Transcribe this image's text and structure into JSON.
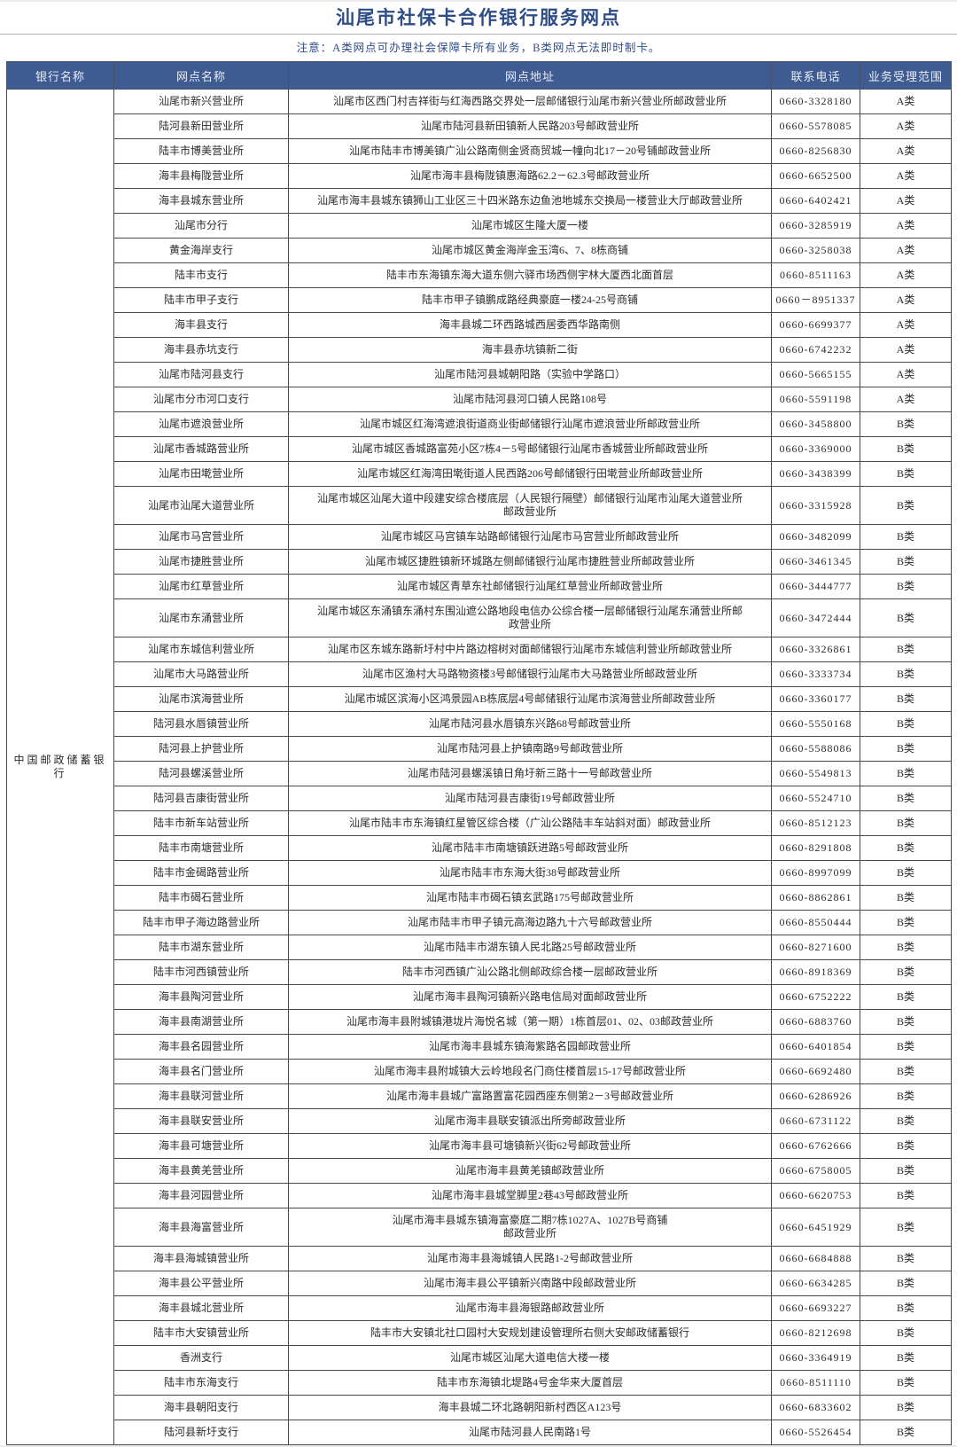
{
  "title": "汕尾市社保卡合作银行服务网点",
  "note": "注意：A类网点可办理社会保障卡所有业务，B类网点无法即时制卡。",
  "colors": {
    "header_bg": "#3f5c92",
    "header_text": "#e8ecf4",
    "title_text": "#2e4c86",
    "border": "#4a4a4a"
  },
  "table": {
    "headers": [
      "银行名称",
      "网点名称",
      "网点地址",
      "联系电话",
      "业务受理范围"
    ],
    "bank": "中国邮政储蓄银行",
    "rows": [
      {
        "name": "汕尾市新兴营业所",
        "address": "汕尾市区西门村吉祥街与红海西路交界处一层邮储银行汕尾市新兴营业所邮政营业所",
        "phone": "0660-3328180",
        "category": "A类"
      },
      {
        "name": "陆河县新田营业所",
        "address": "汕尾市陆河县新田镇新人民路203号邮政营业所",
        "phone": "0660-5578085",
        "category": "A类"
      },
      {
        "name": "陆丰市博美营业所",
        "address": "汕尾市陆丰市博美镇广汕公路南侧金贤商贸城一幢向北17－20号铺邮政营业所",
        "phone": "0660-8256830",
        "category": "A类"
      },
      {
        "name": "海丰县梅陇营业所",
        "address": "汕尾市海丰县梅陇镇惠海路62.2－62.3号邮政营业所",
        "phone": "0660-6652500",
        "category": "A类"
      },
      {
        "name": "海丰县城东营业所",
        "address": "汕尾市海丰县城东镇狮山工业区三十四米路东边鱼池地城东交换局一楼营业大厅邮政营业所",
        "phone": "0660-6402421",
        "category": "A类"
      },
      {
        "name": "汕尾市分行",
        "address": "汕尾市城区生隆大厦一楼",
        "phone": "0660-3285919",
        "category": "A类"
      },
      {
        "name": "黄金海岸支行",
        "address": "汕尾市城区黄金海岸金玉湾6、7、8栋商铺",
        "phone": "0660-3258038",
        "category": "A类"
      },
      {
        "name": "陆丰市支行",
        "address": "陆丰市东海镇东海大道东侧六驿市场西侧宇林大厦西北面首层",
        "phone": "0660-8511163",
        "category": "A类"
      },
      {
        "name": "陆丰市甲子支行",
        "address": "陆丰市甲子镇鹏成路经典豪庭一楼24-25号商铺",
        "phone": "0660－8951337",
        "category": "A类"
      },
      {
        "name": "海丰县支行",
        "address": "海丰县城二环西路城西居委西华路南侧",
        "phone": "0660-6699377",
        "category": "A类"
      },
      {
        "name": "海丰县赤坑支行",
        "address": "海丰县赤坑镇新二街",
        "phone": "0660-6742232",
        "category": "A类"
      },
      {
        "name": "汕尾市陆河县支行",
        "address": "汕尾市陆河县城朝阳路（实验中学路口）",
        "phone": "0660-5665155",
        "category": "A类"
      },
      {
        "name": "汕尾市分市河口支行",
        "address": "汕尾市陆河县河口镇人民路108号",
        "phone": "0660-5591198",
        "category": "A类"
      },
      {
        "name": "汕尾市遮浪营业所",
        "address": "汕尾市城区红海湾遮浪街道商业街邮储银行汕尾市遮浪营业所邮政营业所",
        "phone": "0660-3458800",
        "category": "B类"
      },
      {
        "name": "汕尾市香城路营业所",
        "address": "汕尾市城区香城路富苑小区7栋4－5号邮储银行汕尾市香城营业所邮政营业所",
        "phone": "0660-3369000",
        "category": "B类"
      },
      {
        "name": "汕尾市田墘营业所",
        "address": "汕尾市城区红海湾田墘街道人民西路206号邮储银行田墘营业所邮政营业所",
        "phone": "0660-3438399",
        "category": "B类"
      },
      {
        "name": "汕尾市汕尾大道营业所",
        "address": "汕尾市城区汕尾大道中段建安综合楼底层（人民银行隔壁）邮储银行汕尾市汕尾大道营业所\n邮政营业所",
        "phone": "0660-3315928",
        "category": "B类"
      },
      {
        "name": "汕尾市马宫营业所",
        "address": "汕尾市城区马宫镇车站路邮储银行汕尾市马宫营业所邮政营业所",
        "phone": "0660-3482099",
        "category": "B类"
      },
      {
        "name": "汕尾市捷胜营业所",
        "address": "汕尾市城区捷胜镇新环城路左侧邮储银行汕尾市捷胜营业所邮政营业所",
        "phone": "0660-3461345",
        "category": "B类"
      },
      {
        "name": "汕尾市红草营业所",
        "address": "汕尾市城区青草东社邮储银行汕尾红草营业所邮政营业所",
        "phone": "0660-3444777",
        "category": "B类"
      },
      {
        "name": "汕尾市东涌营业所",
        "address": "汕尾市城区东涌镇东涌村东围汕遮公路地段电信办公综合楼一层邮储银行汕尾东涌营业所邮\n政营业所",
        "phone": "0660-3472444",
        "category": "B类"
      },
      {
        "name": "汕尾市东城信利营业所",
        "address": "汕尾市区东城东路新圩村中片路边榕树对面邮储银行汕尾市东城信利营业所邮政营业所",
        "phone": "0660-3326861",
        "category": "B类"
      },
      {
        "name": "汕尾市大马路营业所",
        "address": "汕尾市区渔村大马路物资楼3号邮储银行汕尾市大马路营业所邮政营业所",
        "phone": "0660-3333734",
        "category": "B类"
      },
      {
        "name": "汕尾市滨海营业所",
        "address": "汕尾市城区滨海小区鸿景园AB栋底层4号邮储银行汕尾市滨海营业所邮政营业所",
        "phone": "0660-3360177",
        "category": "B类"
      },
      {
        "name": "陆河县水唇镇营业所",
        "address": "汕尾市陆河县水唇镇东兴路68号邮政营业所",
        "phone": "0660-5550168",
        "category": "B类"
      },
      {
        "name": "陆河县上护营业所",
        "address": "汕尾市陆河县上护镇南路9号邮政营业所",
        "phone": "0660-5588086",
        "category": "B类"
      },
      {
        "name": "陆河县螺溪营业所",
        "address": "汕尾市陆河县螺溪镇日角圩新三路十一号邮政营业所",
        "phone": "0660-5549813",
        "category": "B类"
      },
      {
        "name": "陆河县吉康街营业所",
        "address": "汕尾市陆河县吉康街19号邮政营业所",
        "phone": "0660-5524710",
        "category": "B类"
      },
      {
        "name": "陆丰市新车站营业所",
        "address": "汕尾市陆丰市东海镇红星管区综合楼（广汕公路陆丰车站斜对面）邮政营业所",
        "phone": "0660-8512123",
        "category": "B类"
      },
      {
        "name": "陆丰市南塘营业所",
        "address": "汕尾市陆丰市南塘镇跃进路5号邮政营业所",
        "phone": "0660-8291808",
        "category": "B类"
      },
      {
        "name": "陆丰市金碣路营业所",
        "address": "汕尾市陆丰市东海大街38号邮政营业所",
        "phone": "0660-8997099",
        "category": "B类"
      },
      {
        "name": "陆丰市碣石营业所",
        "address": "汕尾市陆丰市碣石镇玄武路175号邮政营业所",
        "phone": "0660-8862861",
        "category": "B类"
      },
      {
        "name": "陆丰市甲子海边路营业所",
        "address": "汕尾市陆丰市甲子镇元高海边路九十六号邮政营业所",
        "phone": "0660-8550444",
        "category": "B类"
      },
      {
        "name": "陆丰市湖东营业所",
        "address": "汕尾市陆丰市湖东镇人民北路25号邮政营业所",
        "phone": "0660-8271600",
        "category": "B类"
      },
      {
        "name": "陆丰市河西镇营业所",
        "address": "陆丰市河西镇广汕公路北侧邮政综合楼一层邮政营业所",
        "phone": "0660-8918369",
        "category": "B类"
      },
      {
        "name": "海丰县陶河营业所",
        "address": "汕尾市海丰县陶河镇新兴路电信局对面邮政营业所",
        "phone": "0660-6752222",
        "category": "B类"
      },
      {
        "name": "海丰县南湖营业所",
        "address": "汕尾市海丰县附城镇港垅片海悦名城（第一期）1栋首层01、02、03邮政营业所",
        "phone": "0660-6883760",
        "category": "B类"
      },
      {
        "name": "海丰县名园营业所",
        "address": "汕尾市海丰县城东镇海紫路名园邮政营业所",
        "phone": "0660-6401854",
        "category": "B类"
      },
      {
        "name": "海丰县名门营业所",
        "address": "汕尾市海丰县附城镇大云岭地段名门商住楼首层15-17号邮政营业所",
        "phone": "0660-6692480",
        "category": "B类"
      },
      {
        "name": "海丰县联河营业所",
        "address": "汕尾市海丰县城广富路置富花园西座东侧第2－3号邮政营业所",
        "phone": "0660-6286926",
        "category": "B类"
      },
      {
        "name": "海丰县联安营业所",
        "address": "汕尾市海丰县联安镇派出所旁邮政营业所",
        "phone": "0660-6731122",
        "category": "B类"
      },
      {
        "name": "海丰县可塘营业所",
        "address": "汕尾市海丰县可塘镇新兴街62号邮政营业所",
        "phone": "0660-6762666",
        "category": "B类"
      },
      {
        "name": "海丰县黄羌营业所",
        "address": "汕尾市海丰县黄羌镇邮政营业所",
        "phone": "0660-6758005",
        "category": "B类"
      },
      {
        "name": "海丰县河园营业所",
        "address": "汕尾市海丰县城堂脚里2巷43号邮政营业所",
        "phone": "0660-6620753",
        "category": "B类"
      },
      {
        "name": "海丰县海富营业所",
        "address": "汕尾市海丰县城东镇海富豪庭二期7栋1027A、1027B号商铺\n邮政营业所",
        "phone": "0660-6451929",
        "category": "B类"
      },
      {
        "name": "海丰县海城镇营业所",
        "address": "汕尾市海丰县海城镇人民路1-2号邮政营业所",
        "phone": "0660-6684888",
        "category": "B类"
      },
      {
        "name": "海丰县公平营业所",
        "address": "汕尾市海丰县公平镇新兴南路中段邮政营业所",
        "phone": "0660-6634285",
        "category": "B类"
      },
      {
        "name": "海丰县城北营业所",
        "address": "汕尾市海丰县海银路邮政营业所",
        "phone": "0660-6693227",
        "category": "B类"
      },
      {
        "name": "陆丰市大安镇营业所",
        "address": "陆丰市大安镇北社口园村大安规划建设管理所右侧大安邮政储蓄银行",
        "phone": "0660-8212698",
        "category": "B类"
      },
      {
        "name": "香洲支行",
        "address": "汕尾市城区汕尾大道电信大楼一楼",
        "phone": "0660-3364919",
        "category": "B类"
      },
      {
        "name": "陆丰市东海支行",
        "address": "陆丰市东海镇北堤路4号金华来大厦首层",
        "phone": "0660-8511110",
        "category": "B类"
      },
      {
        "name": "海丰县朝阳支行",
        "address": "海丰县城二环北路朝阳新村西区A123号",
        "phone": "0660-6833602",
        "category": "B类"
      },
      {
        "name": "陆河县新圩支行",
        "address": "汕尾市陆河县人民南路1号",
        "phone": "0660-5526454",
        "category": "B类"
      }
    ]
  }
}
